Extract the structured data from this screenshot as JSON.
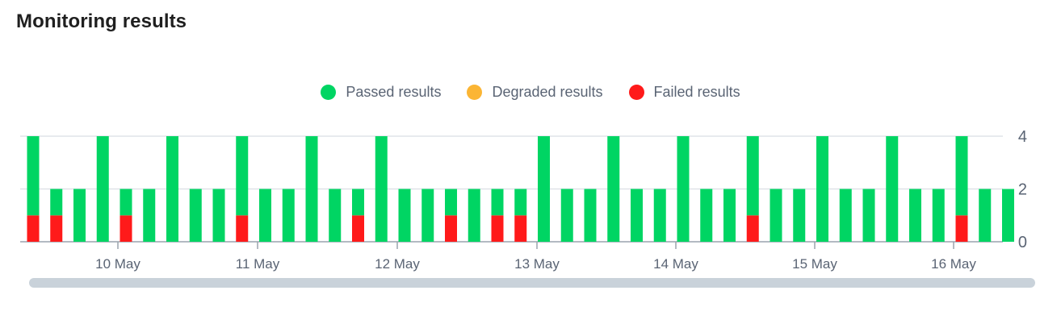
{
  "page": {
    "title": "Monitoring results"
  },
  "legend": [
    {
      "key": "passed",
      "label": "Passed results",
      "color": "#00d563"
    },
    {
      "key": "degraded",
      "label": "Degraded results",
      "color": "#fbb534"
    },
    {
      "key": "failed",
      "label": "Failed results",
      "color": "#ff1a1a"
    }
  ],
  "chart_data": {
    "type": "bar",
    "stacked": true,
    "title": "",
    "xlabel": "",
    "ylabel": "",
    "ylim": [
      0,
      4
    ],
    "y_ticks": [
      0,
      2,
      4
    ],
    "y_axis_side": "right",
    "grid": true,
    "legend_position": "top-center",
    "x_tick_labels": [
      "10 May",
      "11 May",
      "12 May",
      "13 May",
      "14 May",
      "15 May",
      "16 May"
    ],
    "series": [
      {
        "name": "Passed results",
        "color": "#00d563",
        "values": [
          3,
          1,
          2,
          4,
          1,
          2,
          4,
          2,
          2,
          3,
          2,
          2,
          4,
          2,
          1,
          4,
          2,
          2,
          1,
          2,
          1,
          1,
          4,
          2,
          2,
          4,
          2,
          2,
          4,
          2,
          2,
          3,
          2,
          2,
          4,
          2,
          2,
          4,
          2,
          2,
          3,
          2,
          2
        ]
      },
      {
        "name": "Degraded results",
        "color": "#fbb534",
        "values": [
          0,
          0,
          0,
          0,
          0,
          0,
          0,
          0,
          0,
          0,
          0,
          0,
          0,
          0,
          0,
          0,
          0,
          0,
          0,
          0,
          0,
          0,
          0,
          0,
          0,
          0,
          0,
          0,
          0,
          0,
          0,
          0,
          0,
          0,
          0,
          0,
          0,
          0,
          0,
          0,
          0,
          0,
          0
        ]
      },
      {
        "name": "Failed results",
        "color": "#ff1a1a",
        "values": [
          1,
          1,
          0,
          0,
          1,
          0,
          0,
          0,
          0,
          1,
          0,
          0,
          0,
          0,
          1,
          0,
          0,
          0,
          1,
          0,
          1,
          1,
          0,
          0,
          0,
          0,
          0,
          0,
          0,
          0,
          0,
          1,
          0,
          0,
          0,
          0,
          0,
          0,
          0,
          0,
          1,
          0,
          0
        ]
      }
    ]
  },
  "scrollbar": {
    "label": ""
  }
}
